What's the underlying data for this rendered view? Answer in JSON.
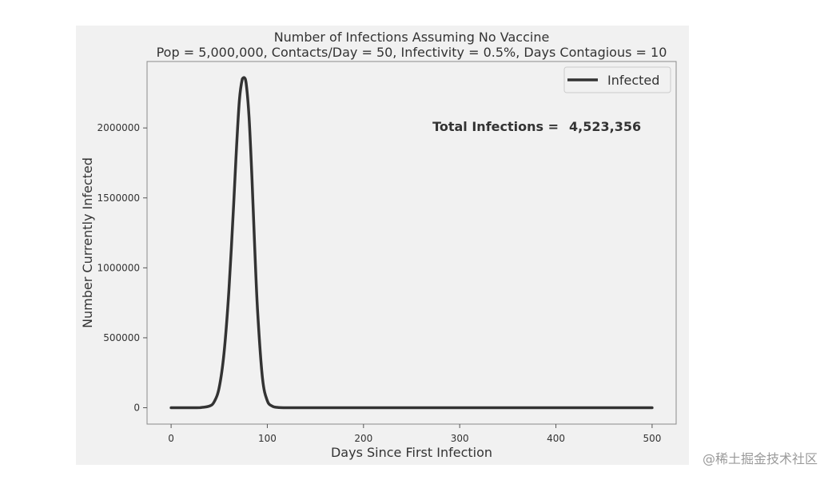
{
  "chart_data": {
    "type": "line",
    "title": "Number of Infections Assuming No Vaccine",
    "subtitle": "Pop = 5,000,000, Contacts/Day = 50, Infectivity = 0.5%, Days Contagious = 10",
    "xlabel": "Days Since First Infection",
    "ylabel": "Number Currently Infected",
    "xlim": [
      -25,
      525
    ],
    "ylim": [
      -117000,
      2475000
    ],
    "xticks": [
      0,
      100,
      200,
      300,
      400,
      500
    ],
    "yticks": [
      0,
      500000,
      1000000,
      1500000,
      2000000
    ],
    "grid": false,
    "legend": {
      "position": "top-right",
      "entries": [
        "Infected"
      ]
    },
    "annotation": {
      "label": "Total Infections =",
      "value": "4,523,356"
    },
    "series": [
      {
        "name": "Infected",
        "color": "#333333",
        "x": [
          0,
          10,
          20,
          30,
          40,
          45,
          50,
          55,
          60,
          65,
          68,
          71,
          74,
          76,
          78,
          81,
          84,
          87,
          90,
          95,
          100,
          105,
          110,
          120,
          150,
          200,
          300,
          400,
          500
        ],
        "y": [
          0,
          0,
          50,
          1000,
          12000,
          45000,
          145000,
          390000,
          830000,
          1450000,
          1860000,
          2200000,
          2350000,
          2360000,
          2320000,
          2080000,
          1650000,
          1130000,
          680000,
          210000,
          50000,
          12000,
          3000,
          0,
          0,
          0,
          0,
          0,
          0
        ]
      }
    ]
  },
  "watermark": "@稀土掘金技术社区"
}
